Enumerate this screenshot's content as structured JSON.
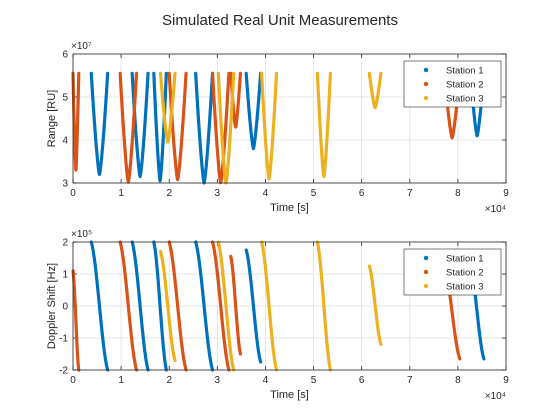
{
  "figure": {
    "title": "Simulated Real Unit Measurements"
  },
  "legend_entries": [
    "Station 1",
    "Station 2",
    "Station 3"
  ],
  "colors": {
    "Station 1": "#0072BD",
    "Station 2": "#D95319",
    "Station 3": "#EDB120"
  },
  "chart_data": [
    {
      "type": "scatter",
      "ylabel": "Range [RU]",
      "xlabel": "Time [s]",
      "xlim": [
        0,
        90000
      ],
      "ylim": [
        30000000,
        60000000
      ],
      "x_ticks": [
        "0",
        "1",
        "2",
        "3",
        "4",
        "5",
        "6",
        "7",
        "8",
        "9"
      ],
      "x_exponent": "×10⁴",
      "y_ticks": [
        "3",
        "4",
        "5",
        "6"
      ],
      "y_exponent": "×10⁷",
      "grid": true,
      "legend": "top-right",
      "series": [
        {
          "name": "Station 1",
          "passes": [
            {
              "t0": 3800,
              "t1": 7200,
              "min": 32000000
            },
            {
              "t0": 12300,
              "t1": 15600,
              "min": 31500000
            },
            {
              "t0": 16800,
              "t1": 19400,
              "min": 30500000
            },
            {
              "t0": 25500,
              "t1": 29000,
              "min": 30000000
            },
            {
              "t0": 36000,
              "t1": 39000,
              "min": 38000000
            },
            {
              "t0": 82600,
              "t1": 85400,
              "min": 41000000
            }
          ]
        },
        {
          "name": "Station 2",
          "passes": [
            {
              "t0": 0,
              "t1": 1200,
              "min": 33000000
            },
            {
              "t0": 9800,
              "t1": 13200,
              "min": 30200000
            },
            {
              "t0": 20000,
              "t1": 23500,
              "min": 30800000
            },
            {
              "t0": 29000,
              "t1": 32400,
              "min": 30100000
            },
            {
              "t0": 32800,
              "t1": 34800,
              "min": 43000000
            },
            {
              "t0": 77200,
              "t1": 80400,
              "min": 40500000
            }
          ]
        },
        {
          "name": "Station 3",
          "passes": [
            {
              "t0": 18200,
              "t1": 21200,
              "min": 39500000
            },
            {
              "t0": 30200,
              "t1": 33400,
              "min": 30000000
            },
            {
              "t0": 39200,
              "t1": 42300,
              "min": 31000000
            },
            {
              "t0": 50800,
              "t1": 53500,
              "min": 31500000
            },
            {
              "t0": 61600,
              "t1": 64000,
              "min": 47500000
            }
          ]
        }
      ]
    },
    {
      "type": "scatter",
      "ylabel": "Doppler Shift [Hz]",
      "xlabel": "Time [s]",
      "xlim": [
        0,
        90000
      ],
      "ylim": [
        -200000,
        200000
      ],
      "x_ticks": [
        "0",
        "1",
        "2",
        "3",
        "4",
        "5",
        "6",
        "7",
        "8",
        "9"
      ],
      "x_exponent": "×10⁴",
      "y_ticks": [
        "-2",
        "-1",
        "0",
        "1",
        "2"
      ],
      "y_exponent": "×10⁵",
      "grid": true,
      "legend": "top-right",
      "series": [
        {
          "name": "Station 1",
          "passes": [
            {
              "t0": 3800,
              "t1": 7200,
              "start": 200000,
              "end": -200000
            },
            {
              "t0": 12300,
              "t1": 15600,
              "start": 200000,
              "end": -200000
            },
            {
              "t0": 16800,
              "t1": 19400,
              "start": 200000,
              "end": -200000
            },
            {
              "t0": 25500,
              "t1": 29000,
              "start": 200000,
              "end": -200000
            },
            {
              "t0": 36000,
              "t1": 39000,
              "start": 175000,
              "end": -175000
            },
            {
              "t0": 82600,
              "t1": 85400,
              "start": 125000,
              "end": -165000
            }
          ]
        },
        {
          "name": "Station 2",
          "passes": [
            {
              "t0": 0,
              "t1": 1200,
              "start": 110000,
              "end": -200000
            },
            {
              "t0": 9800,
              "t1": 13200,
              "start": 200000,
              "end": -200000
            },
            {
              "t0": 20000,
              "t1": 23500,
              "start": 200000,
              "end": -200000
            },
            {
              "t0": 29000,
              "t1": 32400,
              "start": 200000,
              "end": -200000
            },
            {
              "t0": 32800,
              "t1": 34800,
              "start": 155000,
              "end": -150000
            },
            {
              "t0": 77200,
              "t1": 80400,
              "start": 125000,
              "end": -165000
            }
          ]
        },
        {
          "name": "Station 3",
          "passes": [
            {
              "t0": 18200,
              "t1": 21200,
              "start": 170000,
              "end": -170000
            },
            {
              "t0": 30200,
              "t1": 33400,
              "start": 200000,
              "end": -200000
            },
            {
              "t0": 39200,
              "t1": 42300,
              "start": 200000,
              "end": -200000
            },
            {
              "t0": 50800,
              "t1": 53500,
              "start": 200000,
              "end": -200000
            },
            {
              "t0": 61600,
              "t1": 64000,
              "start": 125000,
              "end": -120000
            }
          ]
        }
      ]
    }
  ]
}
